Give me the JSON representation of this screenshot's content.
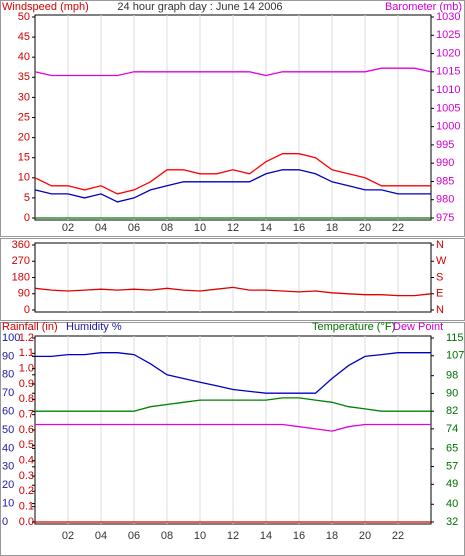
{
  "chart_data": [
    {
      "type": "line",
      "title": "24 hour graph day : June 14 2006",
      "ylabel": "Windspeed (mph)",
      "y2label": "Barometer (mb)",
      "x": [
        0,
        1,
        2,
        3,
        4,
        5,
        6,
        7,
        8,
        9,
        10,
        11,
        12,
        13,
        14,
        15,
        16,
        17,
        18,
        19,
        20,
        21,
        22,
        23,
        24
      ],
      "xticks": [
        {
          "value": 2,
          "label": "02"
        },
        {
          "value": 4,
          "label": "04"
        },
        {
          "value": 6,
          "label": "06"
        },
        {
          "value": 8,
          "label": "08"
        },
        10,
        12,
        14,
        16,
        18,
        20,
        22
      ],
      "ylim": [
        0,
        50
      ],
      "yticks": [
        0,
        5,
        10,
        15,
        20,
        25,
        30,
        35,
        40,
        45,
        50
      ],
      "y2lim": [
        975,
        1030
      ],
      "y2ticks": [
        975,
        980,
        985,
        990,
        995,
        1000,
        1005,
        1010,
        1015,
        1020,
        1025,
        1030
      ],
      "grid": true,
      "series": [
        {
          "color": "#ff0000",
          "values": [
            10,
            8,
            8,
            7,
            8,
            6,
            7,
            9,
            12,
            12,
            11,
            11,
            12,
            11,
            14,
            16,
            16,
            15,
            12,
            11,
            10,
            8,
            8,
            8,
            8
          ]
        },
        {
          "color": "#0000c0",
          "values": [
            7,
            6,
            6,
            5,
            6,
            4,
            5,
            7,
            8,
            9,
            9,
            9,
            9,
            9,
            11,
            12,
            12,
            11,
            9,
            8,
            7,
            7,
            6,
            6,
            6
          ]
        },
        {
          "color": "#008000",
          "values": [
            0,
            0,
            0,
            0,
            0,
            0,
            0,
            0,
            0,
            0,
            0,
            0,
            0,
            0,
            0,
            0,
            0,
            0,
            0,
            0,
            0,
            0,
            0,
            0,
            0
          ]
        },
        {
          "color": "#e000e0",
          "axis": "y2",
          "values": [
            1015,
            1014,
            1014,
            1014,
            1014,
            1014,
            1015,
            1015,
            1015,
            1015,
            1015,
            1015,
            1015,
            1015,
            1014,
            1015,
            1015,
            1015,
            1015,
            1015,
            1015,
            1016,
            1016,
            1016,
            1015
          ]
        }
      ]
    },
    {
      "type": "line",
      "x": [
        0,
        1,
        2,
        3,
        4,
        5,
        6,
        7,
        8,
        9,
        10,
        11,
        12,
        13,
        14,
        15,
        16,
        17,
        18,
        19,
        20,
        21,
        22,
        23,
        24
      ],
      "ylim": [
        0,
        360
      ],
      "yticks": [
        0,
        90,
        180,
        270,
        360
      ],
      "y2lim": [
        0,
        360
      ],
      "y2ticks": [
        {
          "value": 0,
          "label": "N"
        },
        {
          "value": 90,
          "label": "E"
        },
        {
          "value": 180,
          "label": "S"
        },
        {
          "value": 270,
          "label": "W"
        },
        {
          "value": 360,
          "label": "N"
        }
      ],
      "grid": true,
      "series": [
        {
          "color": "#e00000",
          "values": [
            120,
            110,
            105,
            110,
            115,
            110,
            115,
            110,
            120,
            110,
            105,
            115,
            125,
            110,
            110,
            105,
            100,
            105,
            95,
            90,
            85,
            85,
            80,
            80,
            90
          ]
        }
      ]
    },
    {
      "type": "line",
      "x": [
        0,
        1,
        2,
        3,
        4,
        5,
        6,
        7,
        8,
        9,
        10,
        11,
        12,
        13,
        14,
        15,
        16,
        17,
        18,
        19,
        20,
        21,
        22,
        23,
        24
      ],
      "xticks": [
        {
          "value": 2,
          "label": "02"
        },
        {
          "value": 4,
          "label": "04"
        },
        {
          "value": 6,
          "label": "06"
        },
        {
          "value": 8,
          "label": "08"
        },
        10,
        12,
        14,
        16,
        18,
        20,
        22
      ],
      "ylim": [
        0,
        100
      ],
      "yticks": [
        0,
        10,
        20,
        30,
        40,
        50,
        60,
        70,
        80,
        90,
        100
      ],
      "y3lim": [
        0,
        1.2
      ],
      "y3ticks": [
        {
          "value": 0,
          "label": "0.0"
        },
        0.1,
        0.2,
        0.3,
        0.4,
        0.5,
        0.6,
        0.7,
        0.8,
        0.9,
        {
          "value": 1,
          "label": "1.0"
        },
        1.1,
        1.2
      ],
      "y2lim": [
        32,
        115
      ],
      "y2ticks": [
        32,
        40,
        49,
        57,
        65,
        74,
        82,
        90,
        98,
        107,
        115
      ],
      "grid": true,
      "series": [
        {
          "name": "Rainfall (in)",
          "color": "#e00000",
          "axis": "y3",
          "values": [
            0,
            0,
            0,
            0,
            0,
            0,
            0,
            0,
            0,
            0,
            0,
            0,
            0,
            0,
            0,
            0,
            0,
            0,
            0,
            0,
            0,
            0,
            0,
            0,
            0
          ]
        },
        {
          "name": "Humidity %",
          "color": "#0000c0",
          "values": [
            90,
            90,
            91,
            91,
            92,
            92,
            91,
            86,
            80,
            78,
            76,
            74,
            72,
            71,
            70,
            70,
            70,
            70,
            78,
            85,
            90,
            91,
            92,
            92,
            92
          ]
        },
        {
          "name": "Temperature (°F)",
          "color": "#008000",
          "axis": "y2",
          "values": [
            82,
            82,
            82,
            82,
            82,
            82,
            82,
            84,
            85,
            86,
            87,
            87,
            87,
            87,
            87,
            88,
            88,
            87,
            86,
            84,
            83,
            82,
            82,
            82,
            82
          ]
        },
        {
          "name": "Dew Point",
          "color": "#e000e0",
          "axis": "y2",
          "values": [
            76,
            76,
            76,
            76,
            76,
            76,
            76,
            76,
            76,
            76,
            76,
            76,
            76,
            76,
            76,
            76,
            75,
            74,
            73,
            75,
            76,
            76,
            76,
            76,
            76
          ]
        }
      ]
    }
  ]
}
